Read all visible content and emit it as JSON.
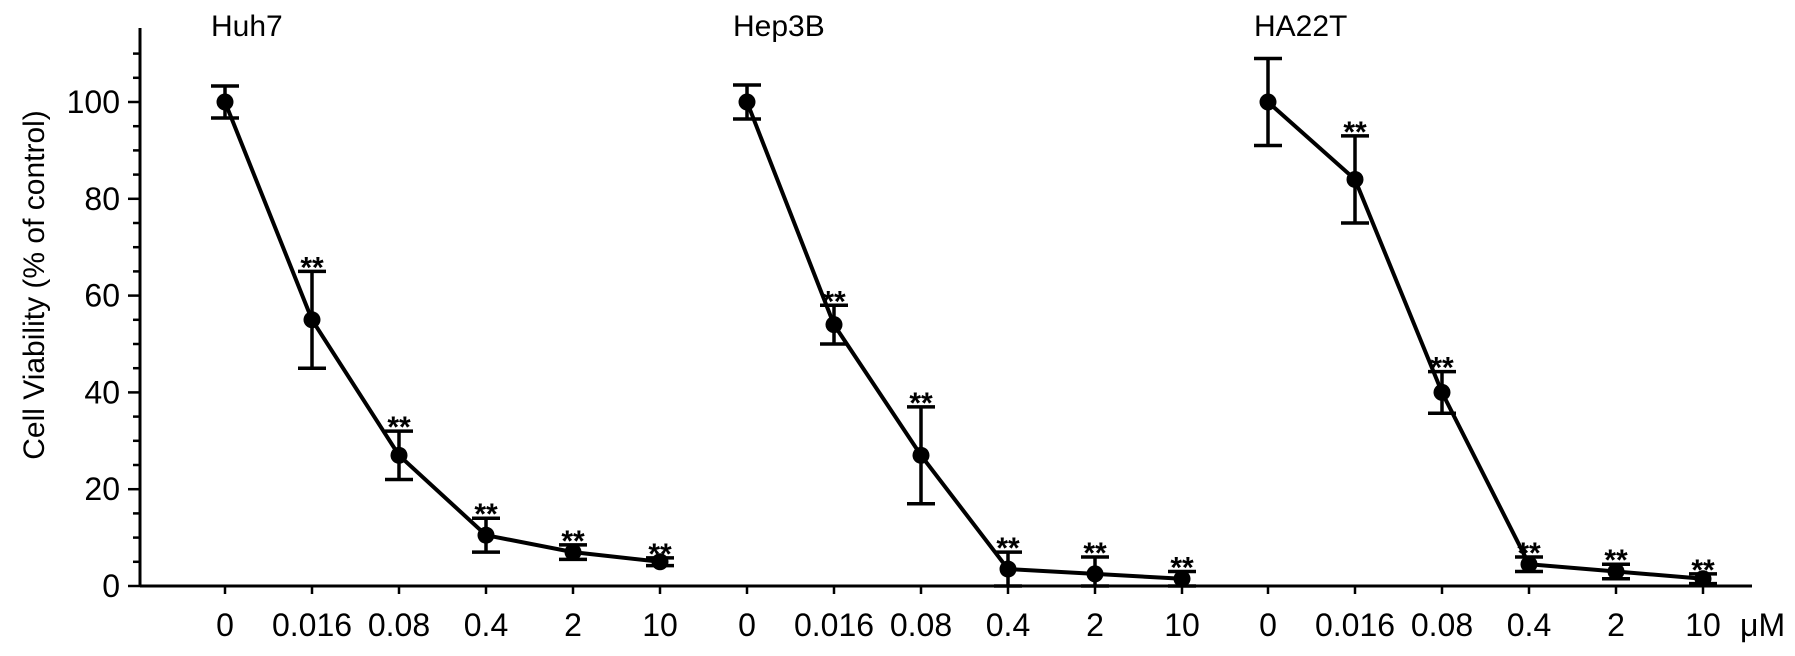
{
  "chart_data": {
    "type": "line",
    "title": "",
    "xlabel": "",
    "ylabel": "Cell Viability (% of control)",
    "x_unit": "μM",
    "ylim": [
      0,
      110
    ],
    "yticks": [
      0,
      20,
      40,
      60,
      80,
      100
    ],
    "grid": false,
    "legend": "none",
    "line_color": "#000000",
    "categories": [
      "0",
      "0.016",
      "0.08",
      "0.4",
      "2",
      "10"
    ],
    "series": [
      {
        "name": "Huh7",
        "values": [
          100,
          55,
          27,
          10.5,
          7,
          5
        ],
        "errors": [
          3.3,
          10,
          5,
          3.5,
          1.5,
          0.8
        ],
        "significance": [
          "",
          "**",
          "**",
          "**",
          "**",
          "**"
        ]
      },
      {
        "name": "Hep3B",
        "values": [
          100,
          54,
          27,
          3.5,
          2.5,
          1.5
        ],
        "errors": [
          3.5,
          4,
          10,
          3.5,
          3.5,
          1.5
        ],
        "significance": [
          "",
          "**",
          "**",
          "**",
          "**",
          "**"
        ]
      },
      {
        "name": "HA22T",
        "values": [
          100,
          84,
          40,
          4.5,
          3,
          1.5
        ],
        "errors": [
          9,
          9,
          4.3,
          1.5,
          1.5,
          1
        ],
        "significance": [
          "",
          "**",
          "**",
          "**",
          "**",
          "**"
        ]
      }
    ]
  }
}
